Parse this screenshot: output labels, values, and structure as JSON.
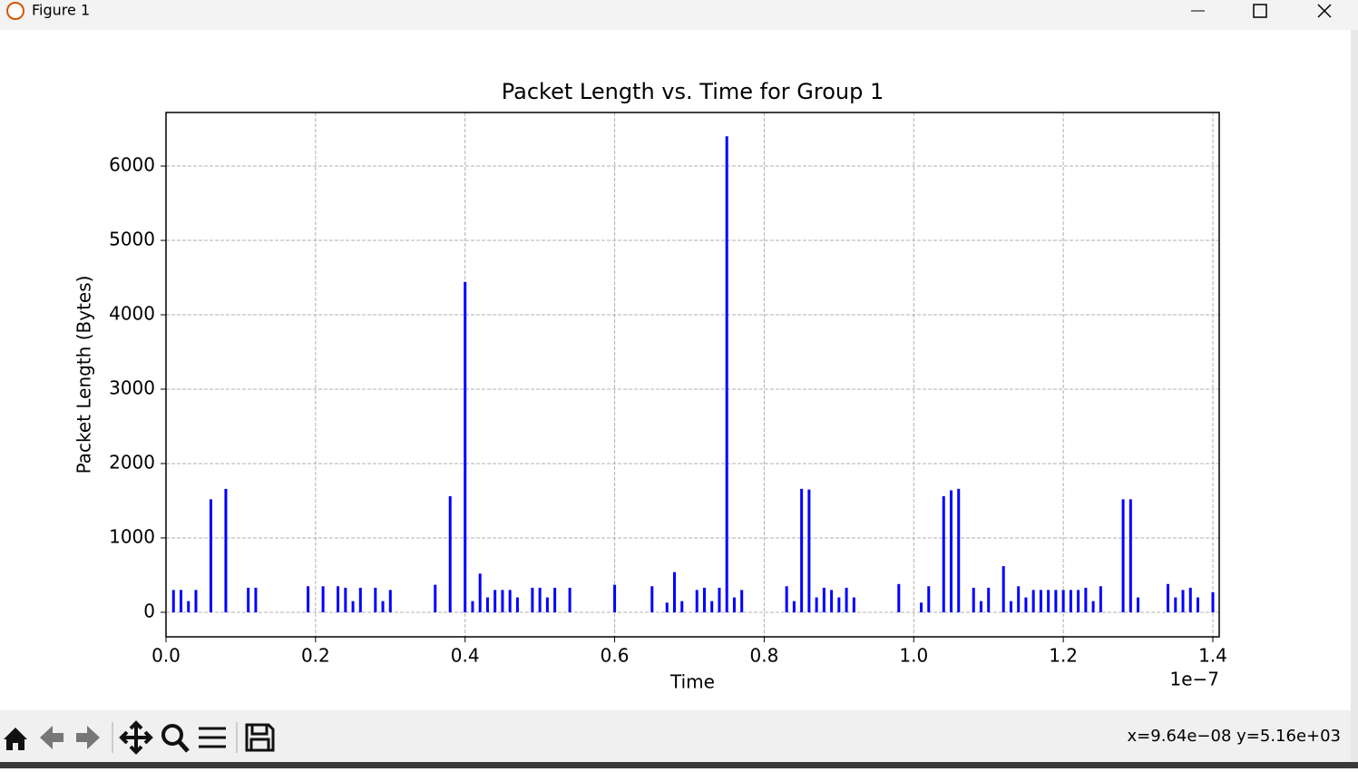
{
  "window": {
    "title": "Figure 1"
  },
  "status": "x=9.64e−08 y=5.16e+03",
  "chart_data": {
    "type": "vlines",
    "title": "Packet Length vs. Time for Group 1",
    "xlabel": "Time",
    "ylabel": "Packet Length (Bytes)",
    "x_offset_label": "1e−7",
    "color": "#0000ff",
    "grid": true,
    "xlim": [
      0,
      1.4085
    ],
    "ylim": [
      -330,
      6720
    ],
    "xticks": [
      {
        "value": 0,
        "label": "0.0"
      },
      0.2,
      0.4,
      0.6,
      0.8,
      {
        "value": 1,
        "label": "1.0"
      },
      1.2,
      1.4
    ],
    "yticks": [
      0,
      1000,
      2000,
      3000,
      4000,
      5000,
      6000
    ],
    "x": [
      0.01,
      0.02,
      0.03,
      0.04,
      0.06,
      0.08,
      0.11,
      0.12,
      0.19,
      0.21,
      0.23,
      0.24,
      0.25,
      0.26,
      0.28,
      0.29,
      0.3,
      0.36,
      0.38,
      0.4,
      0.41,
      0.42,
      0.43,
      0.44,
      0.45,
      0.46,
      0.47,
      0.49,
      0.5,
      0.51,
      0.52,
      0.54,
      0.6,
      0.65,
      0.67,
      0.68,
      0.69,
      0.71,
      0.72,
      0.73,
      0.74,
      0.75,
      0.76,
      0.77,
      0.83,
      0.84,
      0.85,
      0.86,
      0.87,
      0.88,
      0.89,
      0.9,
      0.91,
      0.92,
      0.98,
      1.01,
      1.02,
      1.04,
      1.05,
      1.06,
      1.08,
      1.09,
      1.1,
      1.12,
      1.13,
      1.14,
      1.15,
      1.16,
      1.17,
      1.18,
      1.19,
      1.2,
      1.21,
      1.22,
      1.23,
      1.24,
      1.25,
      1.28,
      1.29,
      1.3,
      1.34,
      1.35,
      1.36,
      1.37,
      1.38,
      1.4
    ],
    "values": [
      300,
      300,
      150,
      300,
      1520,
      1660,
      330,
      330,
      350,
      350,
      350,
      330,
      150,
      330,
      330,
      150,
      300,
      370,
      1560,
      4440,
      150,
      520,
      200,
      300,
      300,
      300,
      200,
      330,
      330,
      200,
      330,
      330,
      370,
      350,
      130,
      540,
      150,
      300,
      330,
      150,
      330,
      6400,
      200,
      300,
      350,
      150,
      1660,
      1650,
      200,
      330,
      300,
      200,
      330,
      200,
      380,
      130,
      350,
      1560,
      1640,
      1660,
      330,
      150,
      330,
      620,
      150,
      350,
      200,
      300,
      300,
      300,
      300,
      300,
      300,
      300,
      330,
      150,
      350,
      1520,
      1520,
      200,
      380,
      200,
      300,
      330,
      200,
      270
    ]
  }
}
